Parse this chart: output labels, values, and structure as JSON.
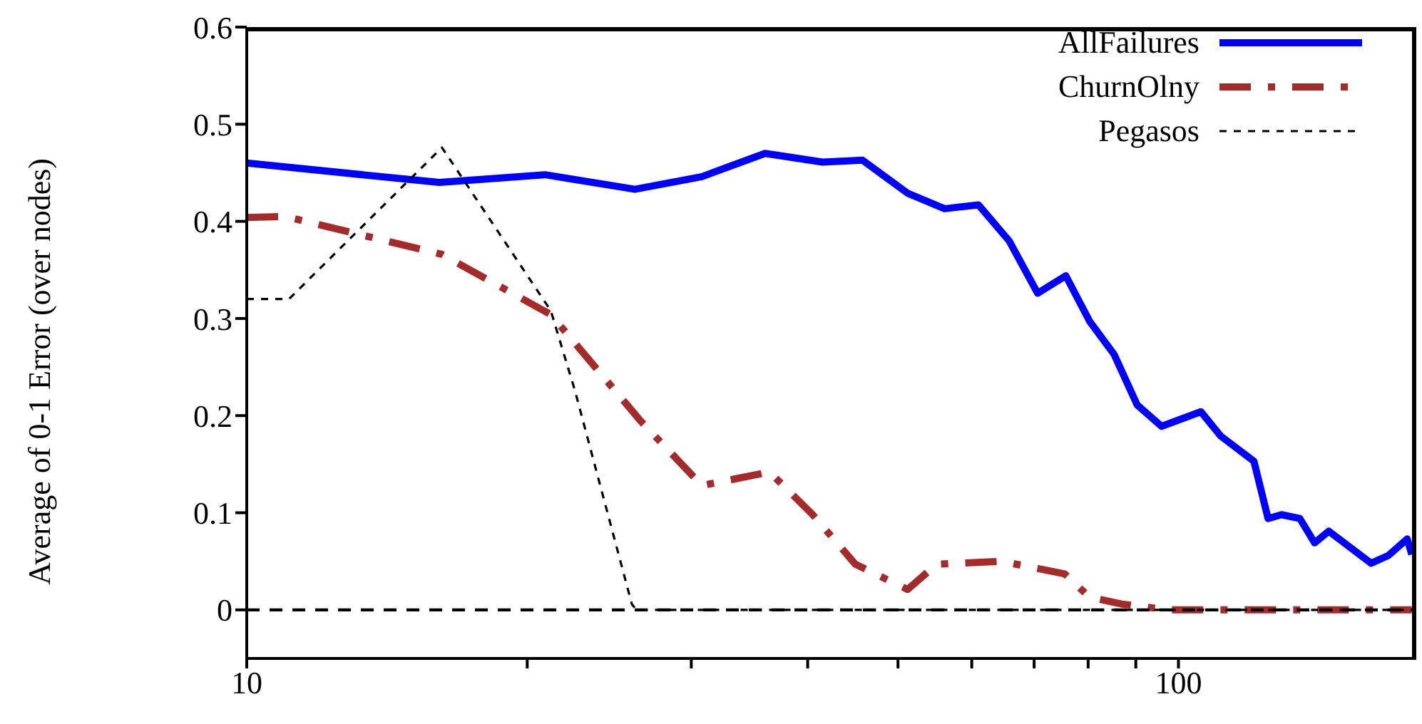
{
  "chart_data": {
    "type": "line",
    "ylabel": "Average of 0-1 Error (over nodes)",
    "log": "x",
    "xlim": [
      10,
      180
    ],
    "xticks": [
      10,
      {
        "value": 20,
        "label": null
      },
      {
        "value": 30,
        "label": null
      },
      {
        "value": 40,
        "label": null
      },
      {
        "value": 50,
        "label": null
      },
      {
        "value": 60,
        "label": null
      },
      {
        "value": 70,
        "label": null
      },
      {
        "value": 80,
        "label": null
      },
      {
        "value": 90,
        "label": null
      },
      100
    ],
    "ylim": [
      -0.05,
      0.6
    ],
    "yticks": [
      0,
      0.1,
      0.2,
      0.3,
      0.4,
      0.5,
      0.6
    ],
    "grid": false,
    "legend": "top right",
    "marker": "none",
    "series": [
      {
        "name": "AllFailures",
        "color": "#0000ff",
        "line_style": "solid",
        "x": [
          10,
          16.1,
          20.9,
          26.1,
          30.8,
          36,
          41.5,
          45.8,
          51.2,
          56.1,
          61,
          65.8,
          70.6,
          75.7,
          80.3,
          85.3,
          90.3,
          95.9,
          105.7,
          111,
          120.5,
          124.8,
          129,
          135,
          140,
          145,
          161,
          168,
          176,
          178
        ],
        "values": [
          0.46,
          0.44,
          0.448,
          0.433,
          0.446,
          0.47,
          0.461,
          0.463,
          0.429,
          0.413,
          0.417,
          0.38,
          0.326,
          0.344,
          0.297,
          0.263,
          0.211,
          0.189,
          0.204,
          0.179,
          0.153,
          0.094,
          0.098,
          0.094,
          0.069,
          0.081,
          0.048,
          0.056,
          0.073,
          0.057
        ]
      },
      {
        "name": "ChurnOlny",
        "color": "#a52a2a",
        "line_style": "dashdot",
        "x": [
          10,
          11,
          16.2,
          21.2,
          26.5,
          30.8,
          36.4,
          40.5,
          45,
          51.2,
          55,
          64.6,
          75.5,
          80.3,
          86.9,
          97.8,
          178
        ],
        "values": [
          0.404,
          0.405,
          0.366,
          0.304,
          0.194,
          0.128,
          0.142,
          0.098,
          0.047,
          0.021,
          0.047,
          0.05,
          0.037,
          0.013,
          0.006,
          0,
          0
        ]
      },
      {
        "name": "Pegasos",
        "color": "#000000",
        "line_style": "dotted",
        "x": [
          10,
          11.1,
          16.2,
          21.2,
          22.5,
          25.9,
          26.2,
          178
        ],
        "values": [
          0.32,
          0.32,
          0.476,
          0.308,
          0.226,
          0.006,
          0,
          0
        ]
      },
      {
        "color": "#000000",
        "line_style": "dashed",
        "x": [
          10,
          178
        ],
        "values": [
          0,
          0
        ]
      }
    ]
  }
}
